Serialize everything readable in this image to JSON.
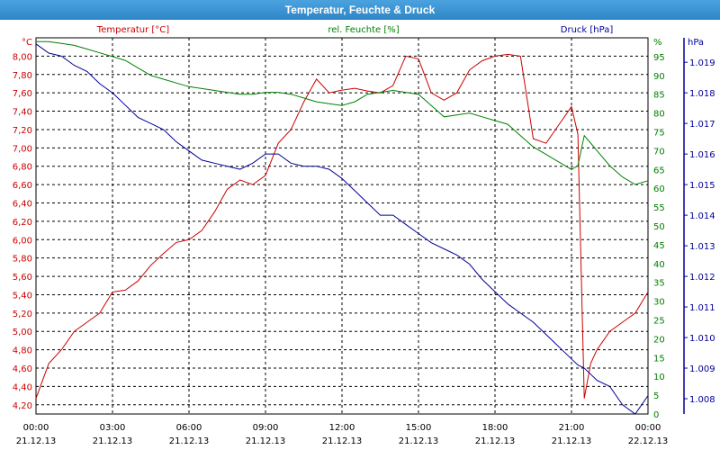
{
  "window": {
    "title": "Temperatur, Feuchte & Druck"
  },
  "chart_data": {
    "type": "line",
    "title": "Temperatur, Feuchte & Druck",
    "grid": true,
    "x_ticks": [
      {
        "time": "00:00",
        "date": "21.12.13"
      },
      {
        "time": "03:00",
        "date": "21.12.13"
      },
      {
        "time": "06:00",
        "date": "21.12.13"
      },
      {
        "time": "09:00",
        "date": "21.12.13"
      },
      {
        "time": "12:00",
        "date": "21.12.13"
      },
      {
        "time": "15:00",
        "date": "21.12.13"
      },
      {
        "time": "18:00",
        "date": "21.12.13"
      },
      {
        "time": "21:00",
        "date": "21.12.13"
      },
      {
        "time": "00:00",
        "date": "22.12.13"
      }
    ],
    "axes": {
      "temperature": {
        "label": "Temperatur [°C]",
        "unit": "°C",
        "range": [
          4.1,
          8.2
        ],
        "ticks": [
          "4,20",
          "4,40",
          "4,60",
          "4,80",
          "5,00",
          "5,20",
          "5,40",
          "5,60",
          "5,80",
          "6,00",
          "6,20",
          "6,40",
          "6,60",
          "6,80",
          "7,00",
          "7,20",
          "7,40",
          "7,60",
          "7,80",
          "8,00"
        ],
        "color": "#cc0000"
      },
      "humidity": {
        "label": "rel. Feuchte [%]",
        "unit": "%",
        "range": [
          0,
          100
        ],
        "ticks": [
          "0",
          "5",
          "10",
          "15",
          "20",
          "25",
          "30",
          "35",
          "40",
          "45",
          "50",
          "55",
          "60",
          "65",
          "70",
          "75",
          "80",
          "85",
          "90",
          "95"
        ],
        "color": "#008000"
      },
      "pressure": {
        "label": "Druck [hPa]",
        "unit": "hPa",
        "range": [
          1.0075,
          1.0198
        ],
        "ticks": [
          "1.008",
          "1.009",
          "1.010",
          "1.011",
          "1.012",
          "1.013",
          "1.014",
          "1.015",
          "1.016",
          "1.017",
          "1.018",
          "1.019"
        ],
        "color": "#000099"
      }
    },
    "series": [
      {
        "name": "Temperatur [°C]",
        "axis": "temperature",
        "color": "#cc0000",
        "x": [
          0,
          0.5,
          1,
          1.5,
          2,
          2.5,
          3,
          3.5,
          4,
          4.5,
          5,
          5.5,
          6,
          6.5,
          7,
          7.5,
          8,
          8.5,
          9,
          9.5,
          10,
          10.5,
          11,
          11.5,
          12,
          12.5,
          13,
          13.5,
          14,
          14.5,
          15,
          15.5,
          16,
          16.5,
          17,
          17.5,
          18,
          18.5,
          19,
          19.5,
          20,
          20.5,
          21,
          21.25,
          21.5,
          21.75,
          22,
          22.5,
          23,
          23.5,
          24
        ],
        "y": [
          4.27,
          4.65,
          4.8,
          5.0,
          5.1,
          5.2,
          5.43,
          5.45,
          5.55,
          5.72,
          5.85,
          5.97,
          6.0,
          6.1,
          6.3,
          6.55,
          6.65,
          6.6,
          6.7,
          7.05,
          7.2,
          7.5,
          7.75,
          7.6,
          7.63,
          7.65,
          7.62,
          7.6,
          7.68,
          8.0,
          7.97,
          7.6,
          7.52,
          7.6,
          7.85,
          7.95,
          8.0,
          8.02,
          8.0,
          7.1,
          7.05,
          7.25,
          7.45,
          7.15,
          4.27,
          4.65,
          4.8,
          5.0,
          5.1,
          5.2,
          5.43
        ]
      },
      {
        "name": "rel. Feuchte [%]",
        "axis": "humidity",
        "color": "#008000",
        "x": [
          0,
          0.5,
          1,
          1.5,
          2,
          2.5,
          3,
          3.5,
          4,
          4.5,
          5,
          5.5,
          6,
          6.5,
          7,
          7.5,
          8,
          8.5,
          9,
          9.5,
          10,
          10.5,
          11,
          11.5,
          12,
          12.5,
          13,
          13.5,
          14,
          14.5,
          15,
          15.5,
          16,
          16.5,
          17,
          17.5,
          18,
          18.5,
          19,
          19.5,
          20,
          20.5,
          21,
          21.25,
          21.5,
          21.75,
          22,
          22.5,
          23,
          23.5,
          24
        ],
        "y": [
          99,
          99,
          98.5,
          98,
          97,
          96,
          95,
          94,
          92,
          90,
          89,
          88,
          87,
          86.5,
          86,
          85.5,
          85,
          85,
          85.5,
          85.5,
          85,
          84,
          83,
          82.5,
          82,
          83,
          85,
          85.5,
          86,
          85.5,
          85,
          82,
          79,
          79.5,
          80,
          79,
          78,
          77,
          74,
          71,
          69,
          67,
          65,
          66,
          74,
          72,
          70,
          66,
          63,
          61,
          62
        ]
      },
      {
        "name": "Druck [hPa]",
        "axis": "pressure",
        "color": "#000099",
        "x": [
          0,
          0.5,
          1,
          1.5,
          2,
          2.5,
          3,
          3.5,
          4,
          4.5,
          5,
          5.5,
          6,
          6.5,
          7,
          7.5,
          8,
          8.5,
          9,
          9.5,
          10,
          10.5,
          11,
          11.5,
          12,
          12.5,
          13,
          13.5,
          14,
          14.5,
          15,
          15.5,
          16,
          16.5,
          17,
          17.5,
          18,
          18.5,
          19,
          19.5,
          20,
          20.5,
          21,
          21.25,
          21.5,
          21.75,
          22,
          22.5,
          23,
          23.5,
          24
        ],
        "y": [
          1.0196,
          1.0193,
          1.0192,
          1.0189,
          1.0187,
          1.0183,
          1.018,
          1.0176,
          1.0172,
          1.017,
          1.0168,
          1.0164,
          1.0161,
          1.0158,
          1.0157,
          1.0156,
          1.0155,
          1.0157,
          1.016,
          1.016,
          1.0157,
          1.0156,
          1.0156,
          1.0155,
          1.0152,
          1.0148,
          1.0144,
          1.014,
          1.014,
          1.0137,
          1.0134,
          1.0131,
          1.0129,
          1.0127,
          1.0124,
          1.0119,
          1.0115,
          1.0111,
          1.0108,
          1.0105,
          1.0101,
          1.0097,
          1.0093,
          1.0091,
          1.009,
          1.0088,
          1.0086,
          1.0084,
          1.0078,
          1.0075,
          1.0081
        ]
      }
    ]
  }
}
